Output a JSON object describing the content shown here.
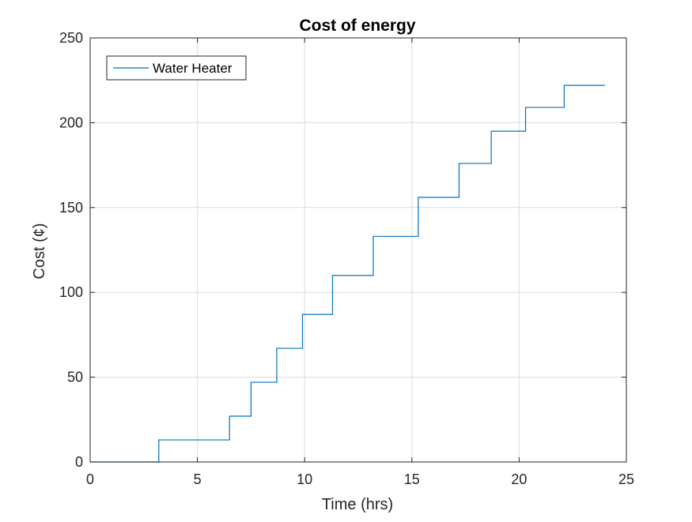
{
  "chart_data": {
    "type": "line",
    "title": "Cost of energy",
    "xlabel": "Time (hrs)",
    "ylabel": "Cost (¢)",
    "xlim": [
      0,
      25
    ],
    "ylim": [
      0,
      250
    ],
    "xticks": [
      0,
      5,
      10,
      15,
      20,
      25
    ],
    "yticks": [
      0,
      50,
      100,
      150,
      200,
      250
    ],
    "grid": true,
    "legend_position": "top-left",
    "line_style": "step",
    "series": [
      {
        "name": "Water Heater",
        "color": "#0072bd",
        "x": [
          0,
          3.2,
          3.2,
          6.5,
          6.5,
          7.5,
          7.5,
          8.7,
          8.7,
          9.9,
          9.9,
          11.3,
          11.3,
          13.2,
          13.2,
          15.3,
          15.3,
          17.2,
          17.2,
          18.7,
          18.7,
          20.3,
          20.3,
          22.1,
          22.1,
          24
        ],
        "y": [
          0,
          0,
          13,
          13,
          27,
          27,
          47,
          47,
          67,
          67,
          87,
          87,
          110,
          110,
          133,
          133,
          156,
          156,
          176,
          176,
          195,
          195,
          209,
          209,
          222,
          222
        ]
      }
    ]
  }
}
